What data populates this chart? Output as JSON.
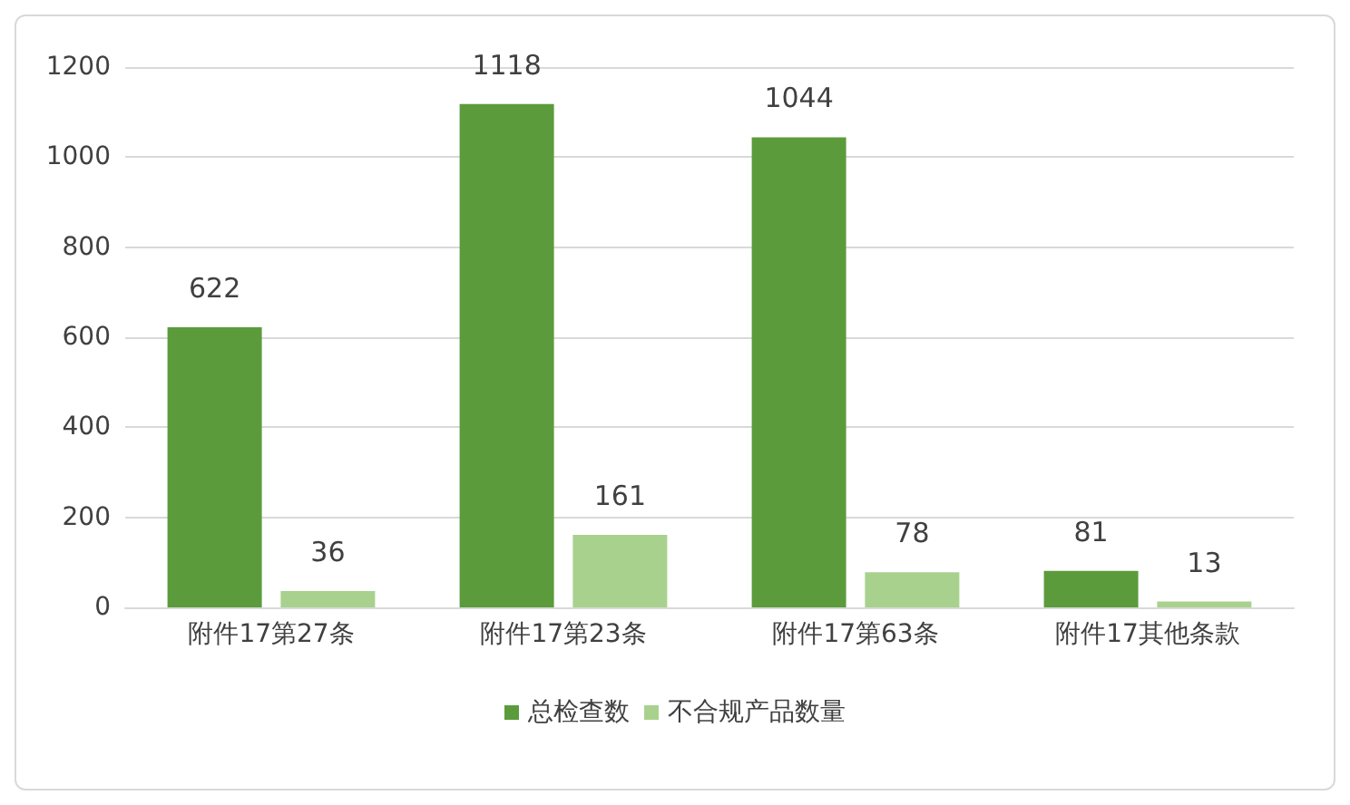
{
  "chart_data": {
    "type": "bar",
    "categories": [
      "附件17第27条",
      "附件17第23条",
      "附件17第63条",
      "附件17其他条款"
    ],
    "series": [
      {
        "name": "总检查数",
        "color": "#5b9b3c",
        "values": [
          622,
          1118,
          1044,
          81
        ]
      },
      {
        "name": "不合规产品数量",
        "color": "#a9d18e",
        "values": [
          36,
          161,
          78,
          13
        ]
      }
    ],
    "ylim": [
      0,
      1200
    ],
    "yticks": [
      0,
      200,
      400,
      600,
      800,
      1000,
      1200
    ],
    "grid": "y",
    "legend": "bottom",
    "data_labels": true
  }
}
